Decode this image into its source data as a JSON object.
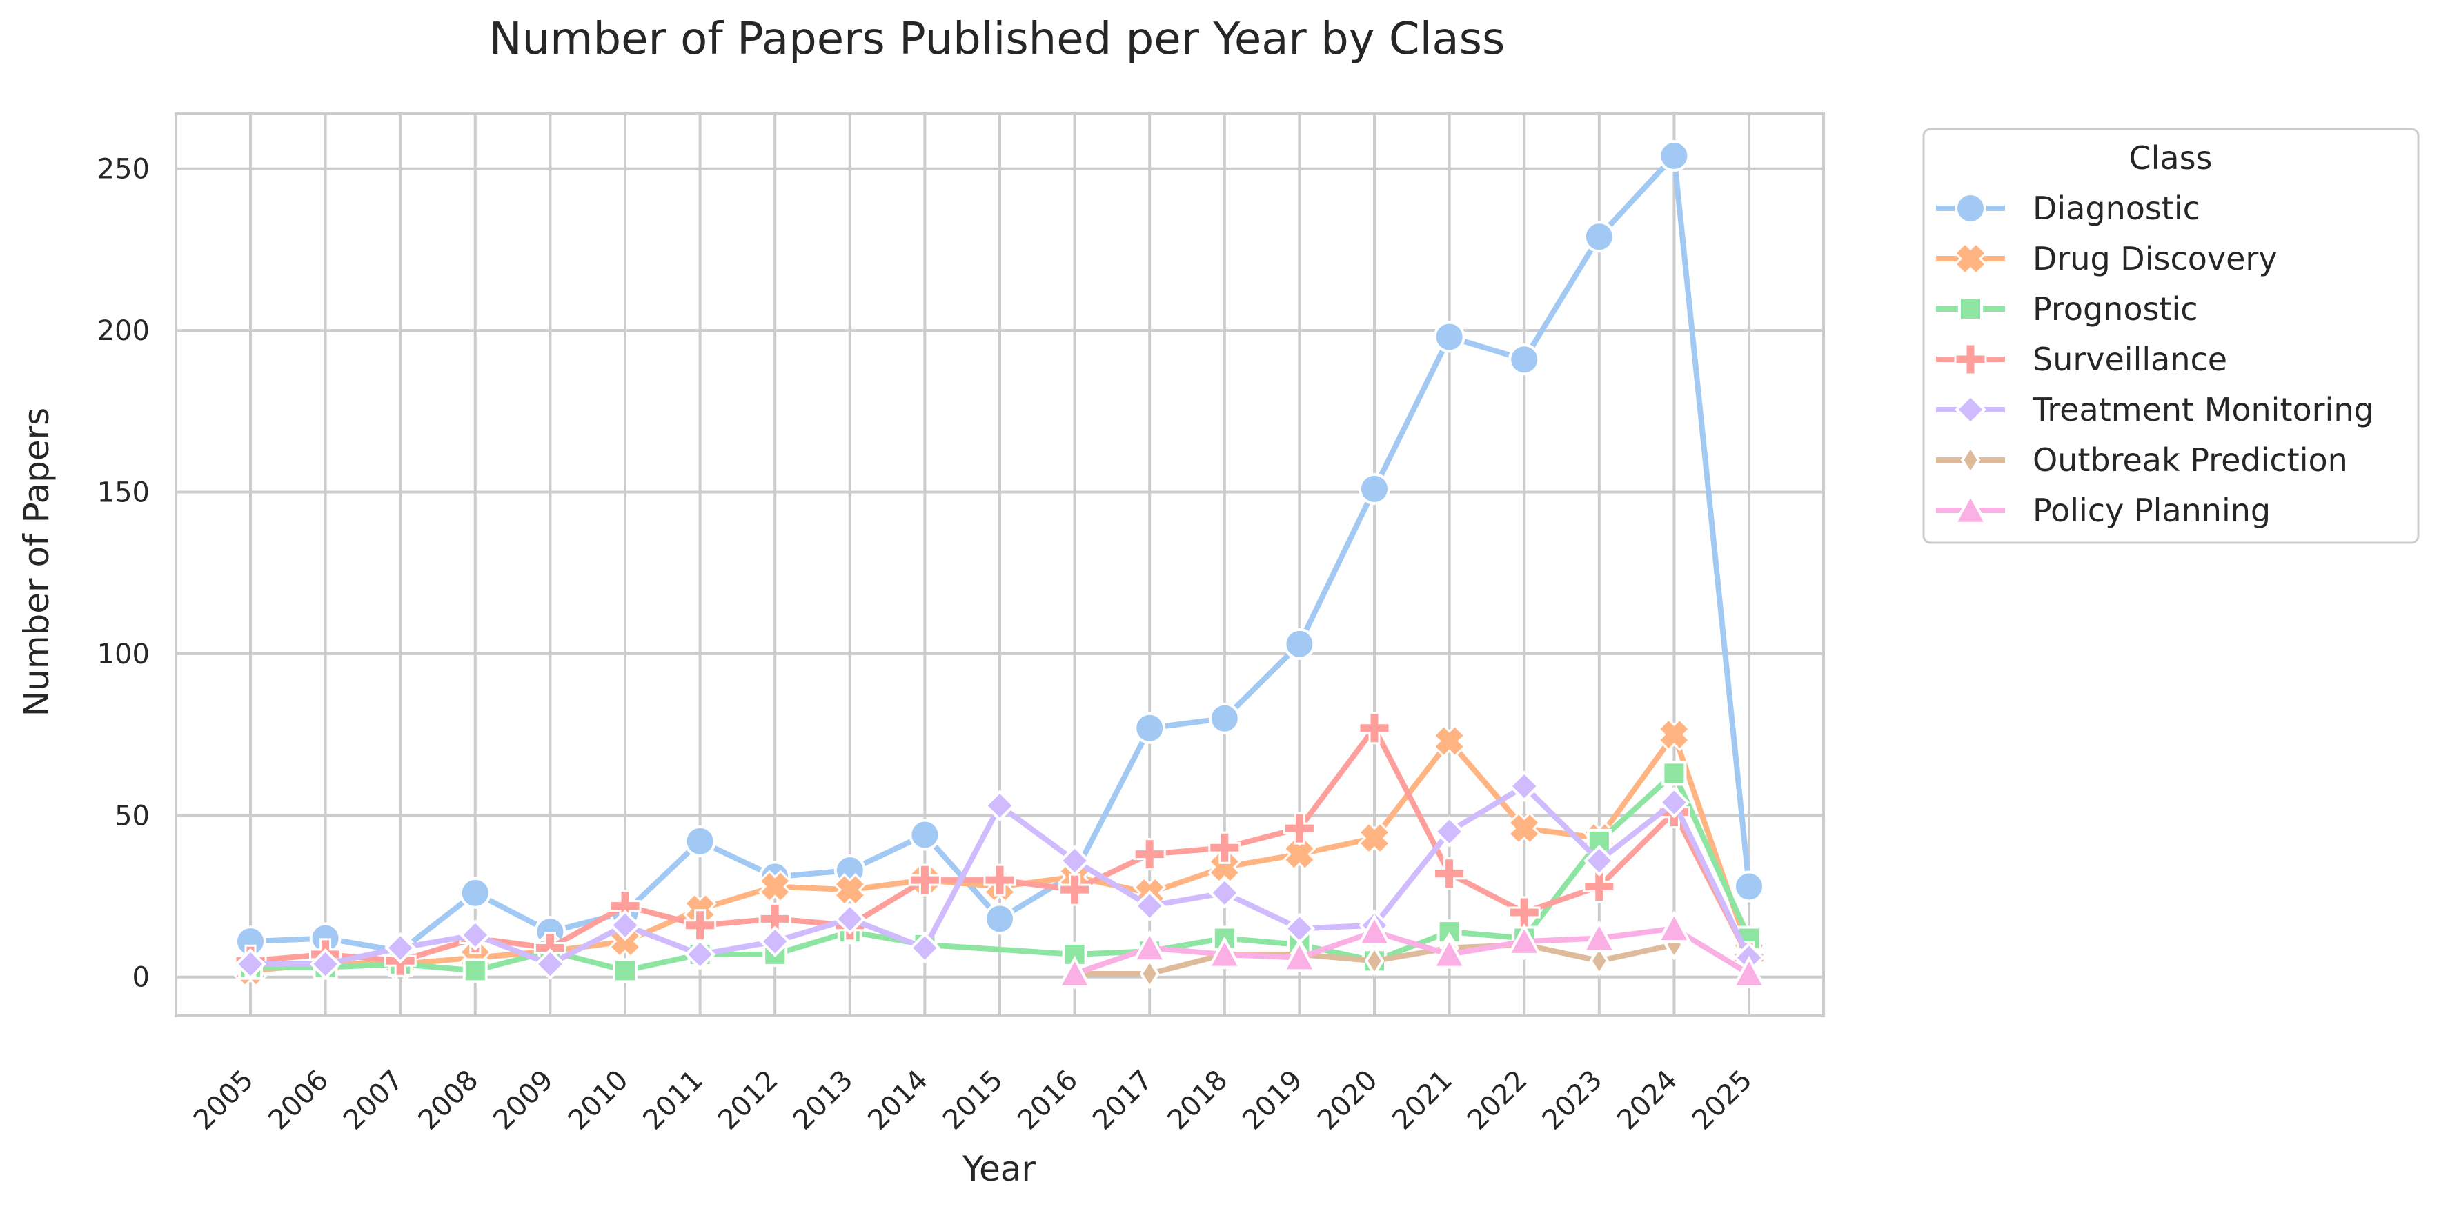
{
  "chart_data": {
    "type": "line",
    "title": "Number of Papers Published per Year by Class",
    "xlabel": "Year",
    "ylabel": "Number of Papers",
    "ylim": [
      -12,
      267
    ],
    "yticks": [
      0,
      50,
      100,
      150,
      200,
      250
    ],
    "grid": true,
    "legend_title": "Class",
    "legend_position": "outside-top-right",
    "categories": [
      "2005",
      "2006",
      "2007",
      "2008",
      "2009",
      "2010",
      "2011",
      "2012",
      "2013",
      "2014",
      "2015",
      "2016",
      "2017",
      "2018",
      "2019",
      "2020",
      "2021",
      "2022",
      "2023",
      "2024",
      "2025"
    ],
    "series": [
      {
        "name": "Diagnostic",
        "color": "#a1c9f4",
        "marker": "circle",
        "values": [
          11,
          12,
          8,
          26,
          14,
          20,
          42,
          31,
          33,
          44,
          18,
          32,
          77,
          80,
          103,
          151,
          198,
          191,
          229,
          254,
          28
        ]
      },
      {
        "name": "Drug Discovery",
        "color": "#ffb482",
        "marker": "x",
        "values": [
          2,
          4,
          4,
          6,
          8,
          11,
          21,
          28,
          27,
          30,
          28,
          31,
          26,
          34,
          38,
          43,
          73,
          46,
          43,
          75,
          8
        ]
      },
      {
        "name": "Prognostic",
        "color": "#8de5a1",
        "marker": "square",
        "values": [
          3,
          3,
          4,
          2,
          8,
          2,
          7,
          7,
          14,
          10,
          null,
          7,
          8,
          12,
          10,
          5,
          14,
          12,
          42,
          63,
          12
        ]
      },
      {
        "name": "Surveillance",
        "color": "#ff9f9b",
        "marker": "plus",
        "values": [
          5,
          7,
          5,
          12,
          9,
          22,
          16,
          18,
          16,
          30,
          30,
          27,
          38,
          40,
          46,
          77,
          32,
          20,
          28,
          51,
          6
        ]
      },
      {
        "name": "Treatment Monitoring",
        "color": "#d0bbff",
        "marker": "diamond",
        "values": [
          4,
          4,
          9,
          13,
          4,
          16,
          7,
          11,
          18,
          9,
          53,
          36,
          22,
          26,
          15,
          16,
          45,
          59,
          36,
          54,
          6
        ]
      },
      {
        "name": "Outbreak Prediction",
        "color": "#debb9b",
        "marker": "thin-diamond",
        "values": [
          null,
          null,
          null,
          null,
          null,
          null,
          null,
          null,
          null,
          null,
          null,
          1,
          1,
          7,
          7,
          5,
          9,
          10,
          5,
          10,
          null
        ]
      },
      {
        "name": "Policy Planning",
        "color": "#fab0e4",
        "marker": "triangle",
        "values": [
          null,
          null,
          null,
          null,
          null,
          null,
          null,
          null,
          null,
          null,
          null,
          1,
          9,
          7,
          6,
          14,
          7,
          11,
          12,
          15,
          1
        ]
      }
    ]
  }
}
